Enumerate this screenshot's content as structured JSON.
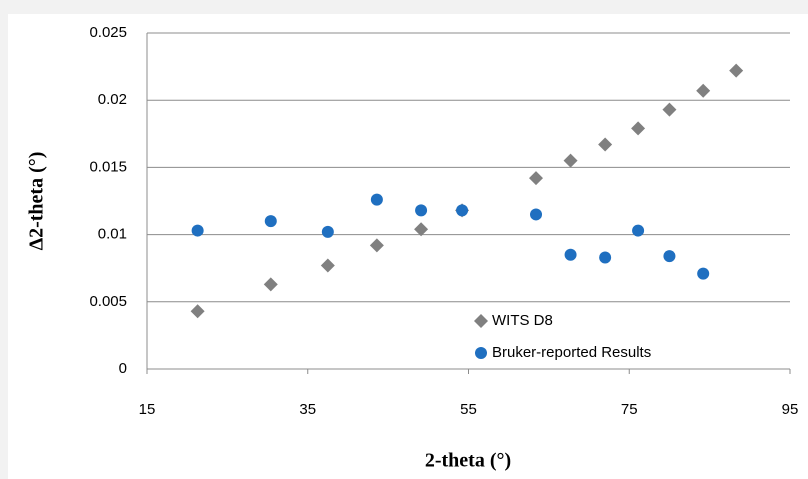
{
  "chart_data": {
    "type": "scatter",
    "xlabel": "2-theta (°)",
    "ylabel": "Δ2-theta (°)",
    "xlim": [
      15,
      95
    ],
    "xticks": [
      15,
      35,
      55,
      75,
      95
    ],
    "ylim": [
      0,
      0.025
    ],
    "yticks": [
      0,
      0.005,
      0.01,
      0.015,
      0.02,
      0.025
    ],
    "grid": true,
    "legend": "lower right",
    "series": [
      {
        "name": "WITS D8",
        "color": "#808080",
        "marker": "diamond",
        "x": [
          21.3,
          30.4,
          37.5,
          43.6,
          49.1,
          54.2,
          63.4,
          67.7,
          72.0,
          76.1,
          80.0,
          84.2,
          88.3
        ],
        "values": [
          0.0043,
          0.0063,
          0.0077,
          0.0092,
          0.0104,
          0.0118,
          0.0142,
          0.0155,
          0.0167,
          0.0179,
          0.0193,
          0.0207,
          0.0222
        ]
      },
      {
        "name": "Bruker-reported Results",
        "color": "#1f6fc0",
        "marker": "circle",
        "x": [
          21.3,
          30.4,
          37.5,
          43.6,
          49.1,
          54.2,
          63.4,
          67.7,
          72.0,
          76.1,
          80.0,
          84.2
        ],
        "values": [
          0.0103,
          0.011,
          0.0102,
          0.0126,
          0.0118,
          0.0118,
          0.0115,
          0.0085,
          0.0083,
          0.0103,
          0.0084,
          0.0071
        ]
      }
    ]
  }
}
